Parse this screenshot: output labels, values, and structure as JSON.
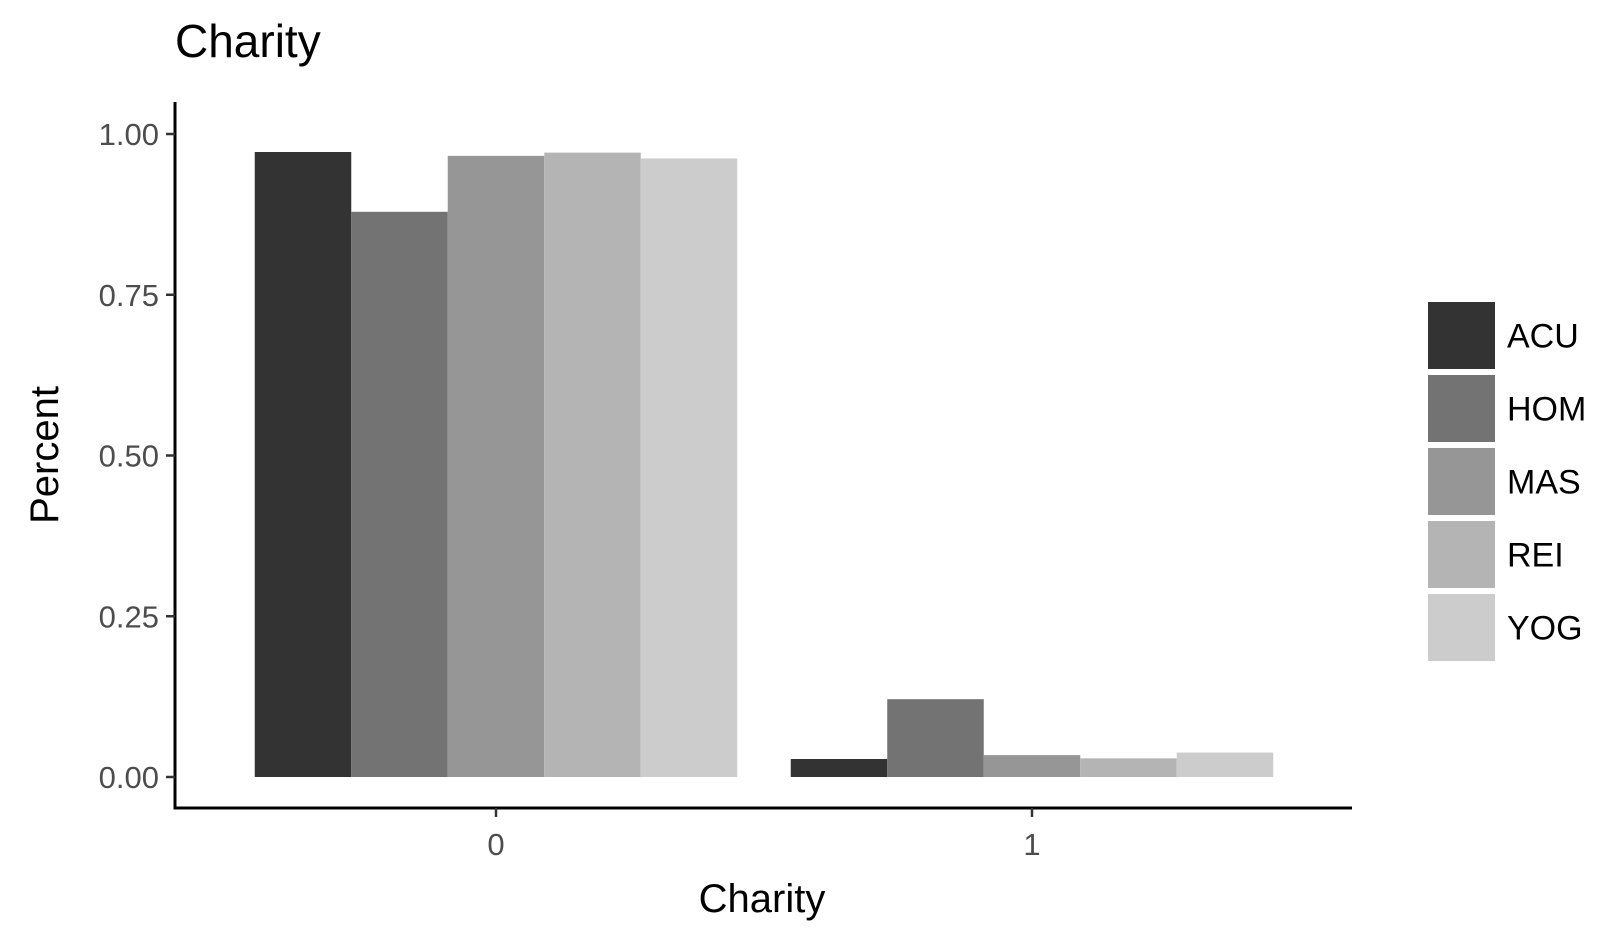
{
  "chart_data": {
    "type": "bar",
    "title": "Charity",
    "xlabel": "Charity",
    "ylabel": "Percent",
    "categories": [
      "0",
      "1"
    ],
    "ylim": [
      0,
      1.05
    ],
    "yticks": [
      0.0,
      0.25,
      0.5,
      0.75,
      1.0
    ],
    "ytick_labels": [
      "0.00",
      "0.25",
      "0.50",
      "0.75",
      "1.00"
    ],
    "grid": false,
    "legend_position": "right",
    "series": [
      {
        "name": "ACU",
        "color": "#333333",
        "values": [
          0.972,
          0.028
        ]
      },
      {
        "name": "HOM",
        "color": "#737373",
        "values": [
          0.879,
          0.121
        ]
      },
      {
        "name": "MAS",
        "color": "#969696",
        "values": [
          0.966,
          0.034
        ]
      },
      {
        "name": "REI",
        "color": "#b4b4b4",
        "values": [
          0.971,
          0.029
        ]
      },
      {
        "name": "YOG",
        "color": "#cccccc",
        "values": [
          0.962,
          0.038
        ]
      }
    ]
  }
}
